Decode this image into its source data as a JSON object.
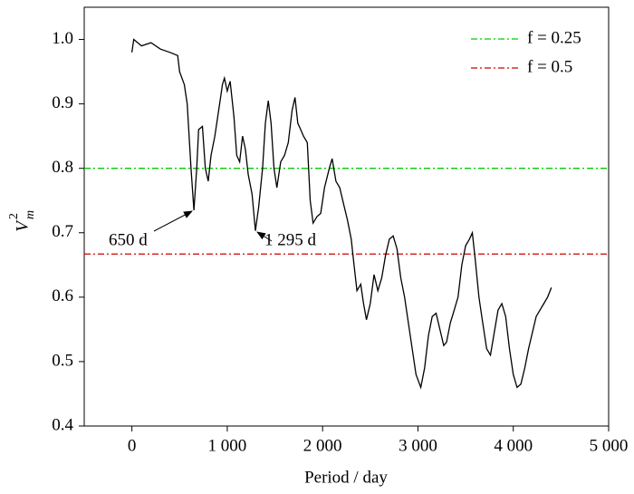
{
  "chart_data": {
    "type": "line",
    "x_label": "Period / day",
    "y_label": "V",
    "y_label_sub": "m",
    "y_label_sup": "2",
    "xlim": [
      -500,
      5000
    ],
    "ylim": [
      0.4,
      1.05
    ],
    "xticks": [
      0,
      {
        "value": 1000,
        "label": "1 000"
      },
      {
        "value": 2000,
        "label": "2 000"
      },
      {
        "value": 3000,
        "label": "3 000"
      },
      {
        "value": 4000,
        "label": "4 000"
      },
      {
        "value": 5000,
        "label": "5 000"
      }
    ],
    "yticks": [
      0.4,
      0.5,
      0.6,
      0.7,
      0.8,
      0.9,
      {
        "value": 1.0,
        "label": "1.0"
      }
    ],
    "x": [
      0,
      20,
      100,
      200,
      300,
      400,
      480,
      500,
      550,
      580,
      600,
      620,
      650,
      680,
      700,
      740,
      770,
      800,
      830,
      870,
      920,
      950,
      970,
      1000,
      1030,
      1070,
      1100,
      1130,
      1160,
      1190,
      1220,
      1260,
      1295,
      1330,
      1370,
      1400,
      1430,
      1460,
      1490,
      1520,
      1560,
      1600,
      1640,
      1680,
      1710,
      1740,
      1770,
      1800,
      1840,
      1870,
      1900,
      1940,
      1980,
      2020,
      2070,
      2100,
      2140,
      2180,
      2220,
      2260,
      2300,
      2330,
      2360,
      2400,
      2430,
      2460,
      2500,
      2540,
      2580,
      2620,
      2660,
      2700,
      2740,
      2780,
      2820,
      2860,
      2900,
      2940,
      2980,
      3030,
      3070,
      3110,
      3150,
      3190,
      3230,
      3270,
      3300,
      3340,
      3380,
      3420,
      3460,
      3500,
      3540,
      3570,
      3600,
      3640,
      3680,
      3720,
      3760,
      3800,
      3840,
      3880,
      3920,
      3960,
      4000,
      4040,
      4080,
      4120,
      4160,
      4200,
      4240,
      4280,
      4320,
      4360,
      4400
    ],
    "series": [
      {
        "name": "V",
        "color": "#000000",
        "values": [
          0.98,
          1.0,
          0.99,
          0.995,
          0.985,
          0.98,
          0.975,
          0.95,
          0.93,
          0.9,
          0.85,
          0.8,
          0.735,
          0.8,
          0.86,
          0.865,
          0.8,
          0.78,
          0.82,
          0.85,
          0.9,
          0.93,
          0.94,
          0.92,
          0.935,
          0.88,
          0.82,
          0.81,
          0.85,
          0.83,
          0.79,
          0.76,
          0.703,
          0.74,
          0.8,
          0.87,
          0.905,
          0.87,
          0.8,
          0.77,
          0.81,
          0.82,
          0.84,
          0.89,
          0.91,
          0.87,
          0.86,
          0.85,
          0.84,
          0.75,
          0.715,
          0.725,
          0.73,
          0.77,
          0.8,
          0.815,
          0.78,
          0.77,
          0.745,
          0.72,
          0.69,
          0.65,
          0.61,
          0.62,
          0.59,
          0.565,
          0.59,
          0.635,
          0.61,
          0.63,
          0.665,
          0.69,
          0.695,
          0.675,
          0.63,
          0.6,
          0.56,
          0.52,
          0.48,
          0.46,
          0.49,
          0.54,
          0.57,
          0.575,
          0.55,
          0.525,
          0.53,
          0.56,
          0.58,
          0.6,
          0.65,
          0.68,
          0.69,
          0.7,
          0.66,
          0.6,
          0.56,
          0.52,
          0.51,
          0.545,
          0.58,
          0.59,
          0.57,
          0.52,
          0.48,
          0.46,
          0.465,
          0.49,
          0.52,
          0.545,
          0.57,
          0.58,
          0.59,
          0.6,
          0.615
        ]
      }
    ],
    "reference_lines": [
      {
        "name": "f = 0.25",
        "color": "#00cc00",
        "value": 0.8
      },
      {
        "name": "f = 0.5",
        "color": "#cc0000",
        "value": 0.667
      }
    ],
    "annotations": [
      {
        "text": "650 d"
      },
      {
        "text": "1 295 d"
      }
    ]
  }
}
